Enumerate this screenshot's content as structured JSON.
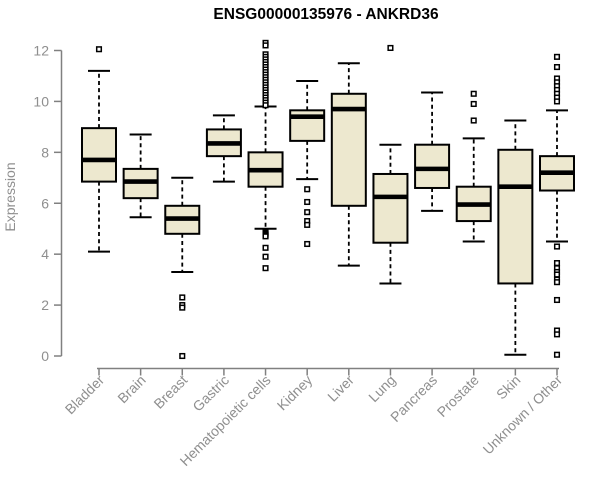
{
  "chart_data": {
    "type": "boxplot",
    "title": "ENSG00000135976 - ANKRD36",
    "ylabel": "Expression",
    "xlabel": "",
    "ylim": [
      0,
      12
    ],
    "yticks": [
      0,
      2,
      4,
      6,
      8,
      10,
      12
    ],
    "grid": false,
    "legend": false,
    "x_label_rotation_deg": 45,
    "categories": [
      "Bladder",
      "Brain",
      "Breast",
      "Gastric",
      "Hematopoietic cells",
      "Kidney",
      "Liver",
      "Lung",
      "Pancreas",
      "Prostate",
      "Skin",
      "Unknown / Other"
    ],
    "series": [
      {
        "name": "Bladder",
        "low": 4.1,
        "q1": 6.85,
        "median": 7.7,
        "q3": 8.95,
        "high": 11.2,
        "outliers": [
          12.05
        ]
      },
      {
        "name": "Brain",
        "low": 5.45,
        "q1": 6.2,
        "median": 6.85,
        "q3": 7.35,
        "high": 8.7,
        "outliers": []
      },
      {
        "name": "Breast",
        "low": 3.3,
        "q1": 4.8,
        "median": 5.4,
        "q3": 5.9,
        "high": 7.0,
        "outliers": [
          2.3,
          2.0,
          1.9,
          0.0
        ]
      },
      {
        "name": "Gastric",
        "low": 6.85,
        "q1": 7.85,
        "median": 8.35,
        "q3": 8.9,
        "high": 9.45,
        "outliers": []
      },
      {
        "name": "Hematopoietic cells",
        "low": 5.0,
        "q1": 6.65,
        "median": 7.3,
        "q3": 8.0,
        "high": 9.8,
        "outliers": [
          12.3,
          12.2,
          11.85,
          11.75,
          11.65,
          11.55,
          11.45,
          11.35,
          11.25,
          11.15,
          11.05,
          10.95,
          10.85,
          10.75,
          10.65,
          10.55,
          10.45,
          10.35,
          10.25,
          10.15,
          10.05,
          9.95,
          9.85,
          4.85,
          4.8,
          4.75,
          4.7,
          4.25,
          3.9,
          3.45
        ]
      },
      {
        "name": "Kidney",
        "low": 6.95,
        "q1": 8.45,
        "median": 9.4,
        "q3": 9.65,
        "high": 10.8,
        "outliers": [
          6.55,
          6.05,
          5.65,
          5.3,
          5.15,
          4.4
        ]
      },
      {
        "name": "Liver",
        "low": 3.55,
        "q1": 5.9,
        "median": 9.7,
        "q3": 10.3,
        "high": 11.5,
        "outliers": []
      },
      {
        "name": "Lung",
        "low": 2.85,
        "q1": 4.45,
        "median": 6.25,
        "q3": 7.15,
        "high": 8.3,
        "outliers": [
          12.1
        ]
      },
      {
        "name": "Pancreas",
        "low": 5.7,
        "q1": 6.6,
        "median": 7.35,
        "q3": 8.3,
        "high": 10.35,
        "outliers": []
      },
      {
        "name": "Prostate",
        "low": 4.5,
        "q1": 5.3,
        "median": 5.95,
        "q3": 6.65,
        "high": 8.55,
        "outliers": [
          10.3,
          9.9,
          9.25
        ]
      },
      {
        "name": "Skin",
        "low": 0.05,
        "q1": 2.85,
        "median": 6.65,
        "q3": 8.1,
        "high": 9.25,
        "outliers": []
      },
      {
        "name": "Unknown / Other",
        "low": 4.5,
        "q1": 6.5,
        "median": 7.2,
        "q3": 7.85,
        "high": 9.65,
        "outliers": [
          11.75,
          11.35,
          10.9,
          10.75,
          10.6,
          10.45,
          10.3,
          10.15,
          10.0,
          4.3,
          3.65,
          3.45,
          3.3,
          3.2,
          3.0,
          2.9,
          2.2,
          1.0,
          0.85,
          0.05
        ]
      }
    ],
    "colors": {
      "background": "#FFFFFF",
      "box_fill": "#EDE8CF",
      "box_border": "#000000",
      "median": "#000000",
      "whisker": "#000000",
      "outlier_stroke": "#000000",
      "outlier_fill": "#FFFFFF",
      "axis_line": "#808080",
      "tick_label": "#8F8F8F",
      "title": "#000000"
    }
  }
}
